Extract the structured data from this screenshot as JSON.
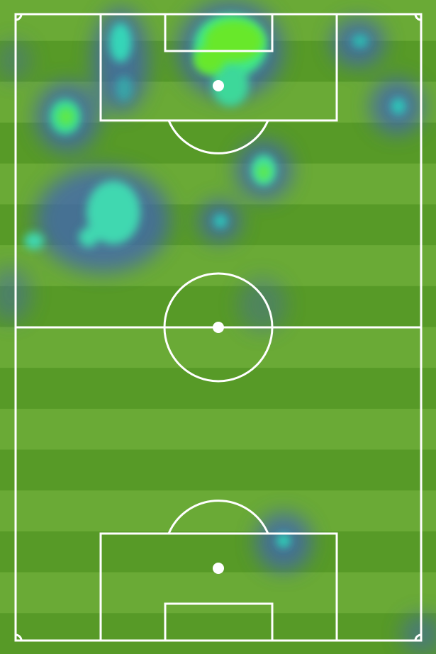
{
  "pitch": {
    "orientation": "vertical",
    "stripe_count": 16,
    "colors": {
      "stripe_light": "#6aaa36",
      "stripe_dark": "#579a27",
      "lines": "#ffffff",
      "heat_low": "#3f63b8",
      "heat_mid": "#2fd0c0",
      "heat_high": "#67e82c"
    }
  },
  "heatmap": {
    "metric": "touch density",
    "zones": [
      {
        "id": "top-penalty-area-center",
        "intensity": 0.95
      },
      {
        "id": "top-penalty-spot",
        "intensity": 0.75
      },
      {
        "id": "top-left-box-edge",
        "intensity": 0.65
      },
      {
        "id": "top-left-channel",
        "intensity": 0.7
      },
      {
        "id": "left-half-space",
        "intensity": 0.65
      },
      {
        "id": "right-wing-upper",
        "intensity": 0.4
      },
      {
        "id": "right-wing-mid",
        "intensity": 0.4
      },
      {
        "id": "right-half-space",
        "intensity": 0.55
      },
      {
        "id": "center-upper",
        "intensity": 0.35
      },
      {
        "id": "bottom-penalty-area-right",
        "intensity": 0.4
      }
    ]
  }
}
